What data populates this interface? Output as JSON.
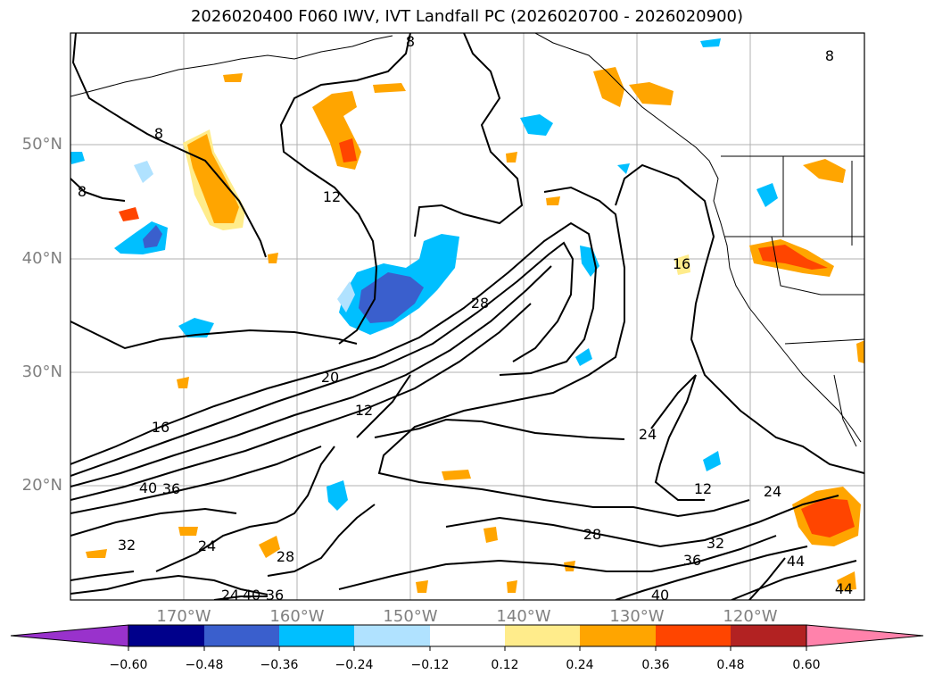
{
  "title": "2026020400 F060 IWV, IVT Landfall PC (2026020700 - 2026020900)",
  "map": {
    "lon_labels": [
      "170°W",
      "160°W",
      "150°W",
      "140°W",
      "130°W",
      "120°W"
    ],
    "lat_labels": [
      "50°N",
      "40°N",
      "30°N",
      "20°N"
    ],
    "contour_labels": [
      "8",
      "8",
      "8",
      "8",
      "12",
      "12",
      "12",
      "16",
      "16",
      "20",
      "24",
      "24",
      "24",
      "24",
      "28",
      "28",
      "28",
      "32",
      "32",
      "36",
      "36",
      "36",
      "40",
      "40",
      "40",
      "44",
      "44"
    ]
  },
  "colorbar": {
    "labels": [
      "−0.60",
      "−0.48",
      "−0.36",
      "−0.24",
      "−0.12",
      "0.12",
      "0.24",
      "0.36",
      "0.48",
      "0.60"
    ],
    "colors": [
      "#9932cc",
      "#00008b",
      "#3a5fcd",
      "#00bfff",
      "#b0e2ff",
      "#ffffff",
      "#ffec8b",
      "#ffa500",
      "#ff4500",
      "#b22222",
      "#ff82ab"
    ]
  }
}
